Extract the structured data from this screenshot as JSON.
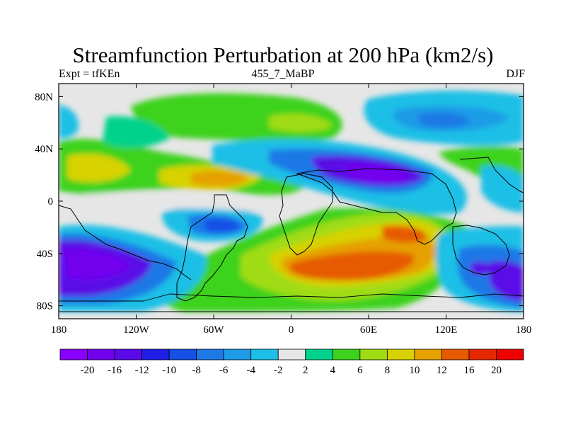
{
  "title": "Streamfunction Perturbation at 200 hPa (km2/s)",
  "subtitle_left": "Expt = tfKEn",
  "subtitle_center": "455_7_MaBP",
  "subtitle_right": "DJF",
  "chart_data": {
    "type": "heatmap",
    "xticks": [
      "180",
      "120W",
      "60W",
      "0",
      "60E",
      "120E",
      "180"
    ],
    "yticks": [
      "80N",
      "40N",
      "0",
      "40S",
      "80S"
    ],
    "xlim": [
      -180,
      180
    ],
    "ylim": [
      -90,
      90
    ],
    "colorbar": {
      "labels": [
        "-20",
        "-16",
        "-12",
        "-10",
        "-8",
        "-6",
        "-4",
        "-2",
        "2",
        "4",
        "6",
        "8",
        "10",
        "12",
        "16",
        "20"
      ],
      "colors": [
        "#8a00ff",
        "#7200ef",
        "#5a0ae6",
        "#1e1ee6",
        "#1450e6",
        "#1e78e6",
        "#1e9be6",
        "#1ebfe6",
        "#e6e6e6",
        "#00d28c",
        "#3cd21e",
        "#a0dc14",
        "#d7d200",
        "#e6a000",
        "#e65a00",
        "#e62800",
        "#f00000"
      ]
    }
  }
}
